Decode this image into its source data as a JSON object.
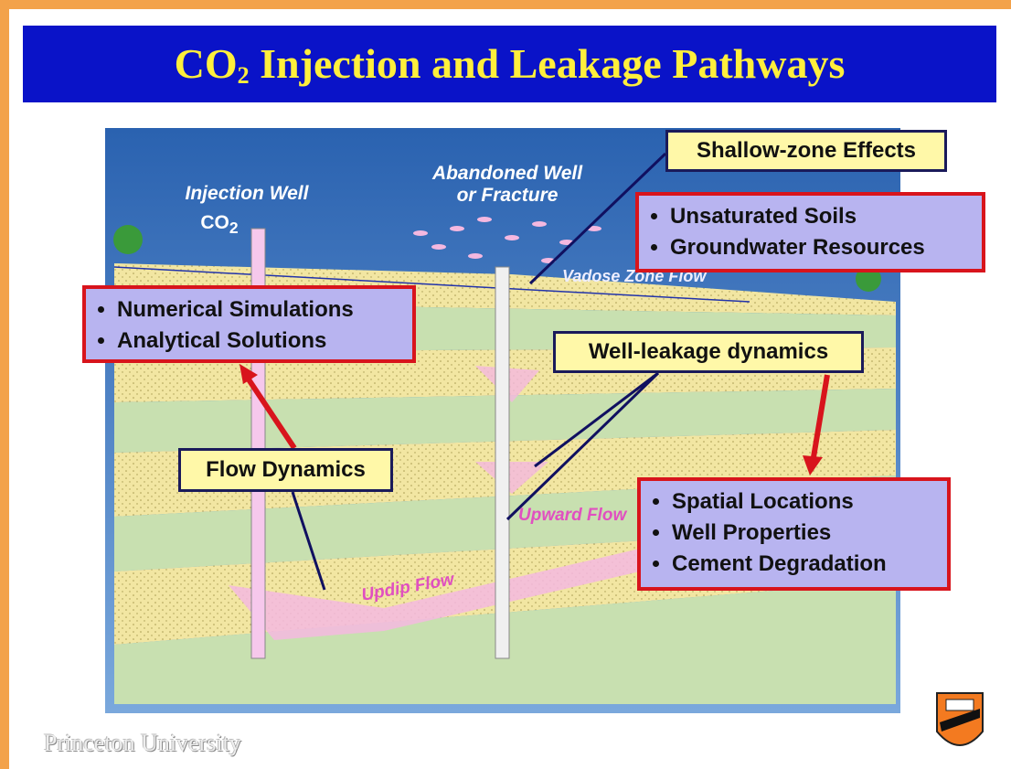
{
  "header": {
    "title": {
      "prefix": "CO",
      "subscript": "2",
      "rest": "Injection and Leakage Pathways"
    }
  },
  "scene": {
    "injection_well": "Injection Well",
    "co2": {
      "prefix": "CO",
      "subscript": "2"
    },
    "abandoned_well": [
      "Abandoned Well",
      "or Fracture"
    ],
    "vadose": "Vadose Zone Flow",
    "upward": "Upward Flow",
    "updip": "Updip Flow"
  },
  "boxes": {
    "shallow": {
      "title": "Shallow-zone Effects",
      "items": [
        "Unsaturated Soils",
        "Groundwater Resources"
      ]
    },
    "methods": {
      "items": [
        "Numerical Simulations",
        "Analytical Solutions"
      ]
    },
    "leakage": {
      "title": "Well-leakage dynamics",
      "items": [
        "Spatial Locations",
        "Well Properties",
        "Cement Degradation"
      ]
    },
    "flow": {
      "title": "Flow Dynamics"
    }
  },
  "footer": {
    "institution": "Princeton University"
  }
}
